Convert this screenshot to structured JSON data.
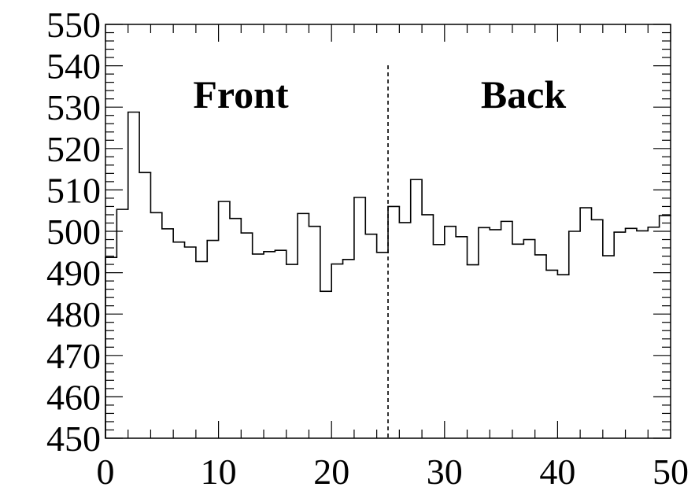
{
  "chart_data": {
    "type": "line",
    "style": "step-histogram",
    "title": "",
    "xlabel": "",
    "ylabel": "",
    "xlim": [
      0,
      50
    ],
    "ylim": [
      450,
      550
    ],
    "x_ticks": [
      0,
      10,
      20,
      30,
      40,
      50
    ],
    "x_tick_labels": [
      "0",
      "10",
      "20",
      "30",
      "40",
      "50"
    ],
    "y_ticks": [
      450,
      460,
      470,
      480,
      490,
      500,
      510,
      520,
      530,
      540,
      550
    ],
    "y_tick_labels": [
      "450",
      "460",
      "470",
      "480",
      "490",
      "500",
      "510",
      "520",
      "530",
      "540",
      "550"
    ],
    "grid": false,
    "bin_width": 1,
    "bin_edges_start": 0,
    "values": [
      493.7,
      505.3,
      528.8,
      514.2,
      504.5,
      500.6,
      497.4,
      496.2,
      492.7,
      497.8,
      507.2,
      503.1,
      499.6,
      494.5,
      495.1,
      495.4,
      492.0,
      504.3,
      501.2,
      485.5,
      492.1,
      493.2,
      508.2,
      499.3,
      494.9,
      506.0,
      502.1,
      512.5,
      504.0,
      496.8,
      501.2,
      498.7,
      491.9,
      500.9,
      500.4,
      502.4,
      496.9,
      498.0,
      494.3,
      490.6,
      489.5,
      500.0,
      505.7,
      502.8,
      494.1,
      499.8,
      500.7,
      500.1,
      501.0,
      503.8
    ],
    "divider_x": 25,
    "divider_style": "dashed",
    "annotations": [
      "Front",
      "Back"
    ]
  }
}
